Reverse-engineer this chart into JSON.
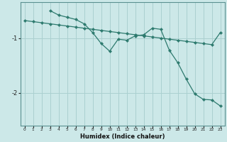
{
  "xlabel": "Humidex (Indice chaleur)",
  "bg_color": "#cce8e8",
  "grid_color": "#aad0d0",
  "line_color": "#2d7a6e",
  "xlim": [
    -0.5,
    23.5
  ],
  "ylim": [
    -2.6,
    -0.35
  ],
  "yticks": [
    -2,
    -1
  ],
  "xticks": [
    0,
    1,
    2,
    3,
    4,
    5,
    6,
    7,
    8,
    9,
    10,
    11,
    12,
    13,
    14,
    15,
    16,
    17,
    18,
    19,
    20,
    21,
    22,
    23
  ],
  "series1_x": [
    0,
    1,
    2,
    3,
    4,
    5,
    6,
    7,
    8,
    9,
    10,
    11,
    12,
    13,
    14,
    15,
    16,
    17,
    18,
    19,
    20,
    21,
    22,
    23
  ],
  "series1_y": [
    -0.68,
    -0.7,
    -0.72,
    -0.74,
    -0.76,
    -0.78,
    -0.8,
    -0.82,
    -0.84,
    -0.86,
    -0.88,
    -0.9,
    -0.92,
    -0.94,
    -0.96,
    -0.98,
    -1.0,
    -1.02,
    -1.04,
    -1.06,
    -1.08,
    -1.1,
    -1.12,
    -0.9
  ],
  "series2_x": [
    3,
    4,
    5,
    6,
    7,
    8,
    9,
    10,
    11,
    12,
    13,
    14,
    15,
    16,
    17,
    18,
    19,
    20,
    21,
    22,
    23
  ],
  "series2_y": [
    -0.5,
    -0.58,
    -0.62,
    -0.66,
    -0.74,
    -0.9,
    -1.1,
    -1.24,
    -1.02,
    -1.04,
    -0.96,
    -0.94,
    -0.82,
    -0.84,
    -1.22,
    -1.45,
    -1.75,
    -2.02,
    -2.12,
    -2.13,
    -2.24
  ]
}
